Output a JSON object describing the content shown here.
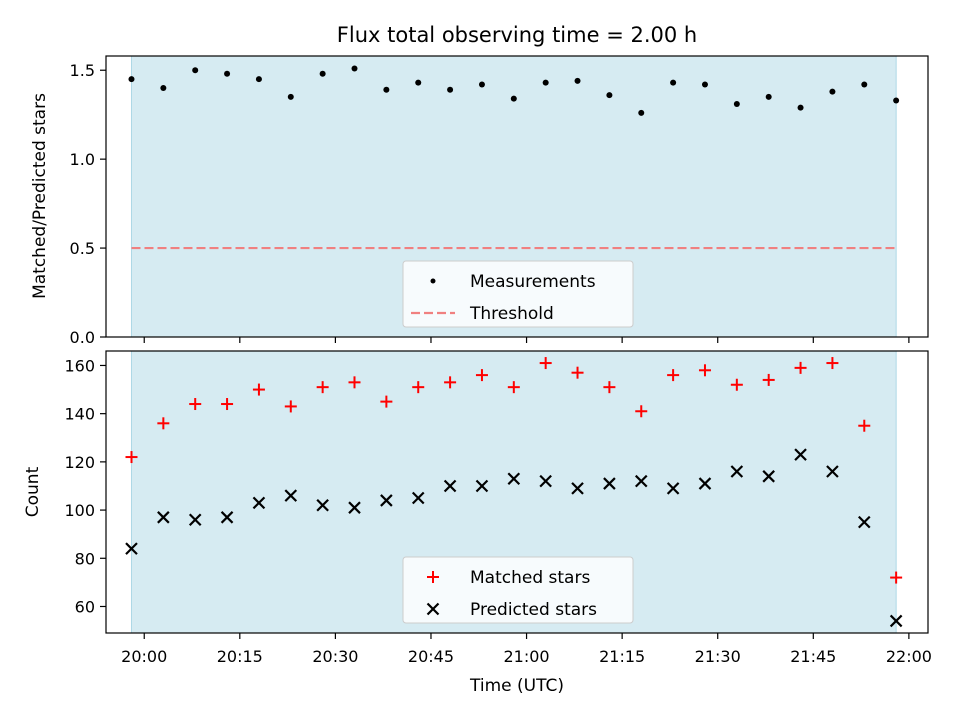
{
  "figure": {
    "title": "Flux total observing time = 2.00 h"
  },
  "colors": {
    "shade": "#add8e6",
    "threshold": "#f08080",
    "measurement": "#000000",
    "matched": "#ff0000",
    "predicted": "#000000",
    "axis": "#000000"
  },
  "chart_data": [
    {
      "type": "scatter",
      "ylabel": "Matched/Predicted stars",
      "ylim": [
        0,
        1.58
      ],
      "yticks": [
        "0.0",
        "0.5",
        "1.0",
        "1.5"
      ],
      "ytick_values": [
        0,
        0.5,
        1.0,
        1.5
      ],
      "xlim": [
        "19:54",
        "22:03"
      ],
      "shaded_span": [
        "19:58",
        "21:58"
      ],
      "legend_position": "lower center",
      "series": [
        {
          "name": "Measurements",
          "marker": "dot",
          "x": [
            "19:58",
            "20:03",
            "20:08",
            "20:13",
            "20:18",
            "20:23",
            "20:28",
            "20:33",
            "20:38",
            "20:43",
            "20:48",
            "20:53",
            "20:58",
            "21:03",
            "21:08",
            "21:13",
            "21:18",
            "21:23",
            "21:28",
            "21:33",
            "21:38",
            "21:43",
            "21:48",
            "21:53",
            "21:58"
          ],
          "y": [
            1.45,
            1.4,
            1.5,
            1.48,
            1.45,
            1.35,
            1.48,
            1.51,
            1.39,
            1.43,
            1.39,
            1.42,
            1.34,
            1.43,
            1.44,
            1.36,
            1.26,
            1.43,
            1.42,
            1.31,
            1.35,
            1.29,
            1.38,
            1.42,
            1.33
          ]
        },
        {
          "name": "Threshold",
          "marker": "dashed-line",
          "x": [
            "19:58",
            "21:58"
          ],
          "y": [
            0.5,
            0.5
          ]
        }
      ]
    },
    {
      "type": "scatter",
      "xlabel": "Time (UTC)",
      "ylabel": "Count",
      "ylim": [
        49,
        166
      ],
      "yticks": [
        "60",
        "80",
        "100",
        "120",
        "140",
        "160"
      ],
      "ytick_values": [
        60,
        80,
        100,
        120,
        140,
        160
      ],
      "xlim": [
        "19:54",
        "22:03"
      ],
      "xticks": [
        "20:00",
        "20:15",
        "20:30",
        "20:45",
        "21:00",
        "21:15",
        "21:30",
        "21:45",
        "22:00"
      ],
      "shaded_span": [
        "19:58",
        "21:58"
      ],
      "legend_position": "lower center",
      "series": [
        {
          "name": "Matched stars",
          "marker": "plus",
          "x": [
            "19:58",
            "20:03",
            "20:08",
            "20:13",
            "20:18",
            "20:23",
            "20:28",
            "20:33",
            "20:38",
            "20:43",
            "20:48",
            "20:53",
            "20:58",
            "21:03",
            "21:08",
            "21:13",
            "21:18",
            "21:23",
            "21:28",
            "21:33",
            "21:38",
            "21:43",
            "21:48",
            "21:53",
            "21:58"
          ],
          "y": [
            122,
            136,
            144,
            144,
            150,
            143,
            151,
            153,
            145,
            151,
            153,
            156,
            151,
            161,
            157,
            151,
            141,
            156,
            158,
            152,
            154,
            159,
            161,
            135,
            72
          ]
        },
        {
          "name": "Predicted stars",
          "marker": "cross",
          "x": [
            "19:58",
            "20:03",
            "20:08",
            "20:13",
            "20:18",
            "20:23",
            "20:28",
            "20:33",
            "20:38",
            "20:43",
            "20:48",
            "20:53",
            "20:58",
            "21:03",
            "21:08",
            "21:13",
            "21:18",
            "21:23",
            "21:28",
            "21:33",
            "21:38",
            "21:43",
            "21:48",
            "21:53",
            "21:58"
          ],
          "y": [
            84,
            97,
            96,
            97,
            103,
            106,
            102,
            101,
            104,
            105,
            110,
            110,
            113,
            112,
            109,
            111,
            112,
            109,
            111,
            116,
            114,
            123,
            116,
            95,
            54
          ]
        }
      ]
    }
  ]
}
